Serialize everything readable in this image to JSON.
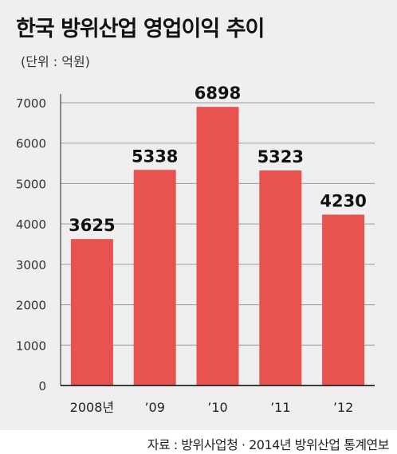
{
  "chart_data": {
    "type": "bar",
    "title": "한국 방위산업 영업이익 추이",
    "unit": "(단위 : 억원)",
    "categories": [
      "2008년",
      "’09",
      "’10",
      "’11",
      "’12"
    ],
    "values": [
      3625,
      5338,
      6898,
      5323,
      4230
    ],
    "value_labels": [
      "3625",
      "5338",
      "6898",
      "5323",
      "4230"
    ],
    "yticks": [
      "0",
      "1000",
      "2000",
      "3000",
      "4000",
      "5000",
      "6000",
      "7000"
    ],
    "ylim": [
      0,
      7000
    ],
    "grid": true,
    "bar_color": "#e8534f",
    "source": "자료 : 방위사업청 · 2014년 방위산업 통계연보"
  }
}
